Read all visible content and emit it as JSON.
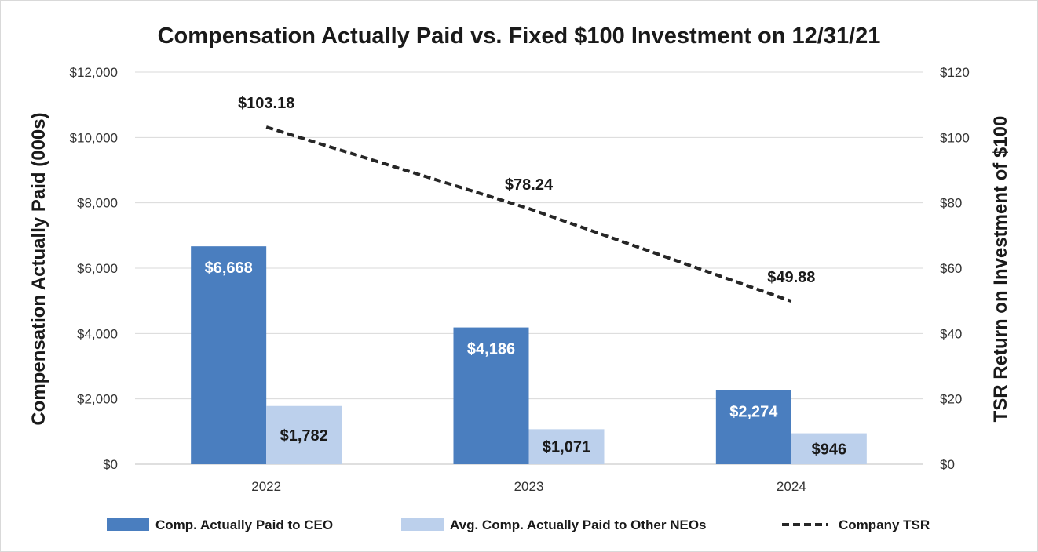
{
  "chart_data": {
    "type": "bar",
    "title": "Compensation Actually Paid vs. Fixed $100 Investment on 12/31/21",
    "categories": [
      "2022",
      "2023",
      "2024"
    ],
    "ylabel": "Compensation Actually Paid (000s)",
    "y2label": "TSR Return on Investment of $100",
    "ylim": [
      0,
      12000
    ],
    "y2lim": [
      0,
      120
    ],
    "yticks": [
      "$0",
      "$2,000",
      "$4,000",
      "$6,000",
      "$8,000",
      "$10,000",
      "$12,000"
    ],
    "y2ticks": [
      "$0",
      "$20",
      "$40",
      "$60",
      "$80",
      "$100",
      "$120"
    ],
    "grid": true,
    "legend_position": "bottom",
    "series": [
      {
        "name": "Comp. Actually Paid to CEO",
        "type": "bar",
        "axis": "left",
        "color": "#4a7ebf",
        "values": [
          6668,
          4186,
          2274
        ],
        "labels": [
          "$6,668",
          "$4,186",
          "$2,274"
        ]
      },
      {
        "name": "Avg. Comp. Actually Paid to Other NEOs",
        "type": "bar",
        "axis": "left",
        "color": "#bcd0ec",
        "values": [
          1782,
          1071,
          946
        ],
        "labels": [
          "$1,782",
          "$1,071",
          "$946"
        ]
      },
      {
        "name": "Company TSR",
        "type": "line",
        "style": "dashed",
        "axis": "right",
        "color": "#262626",
        "values": [
          103.18,
          78.24,
          49.88
        ],
        "labels": [
          "$103.18",
          "$78.24",
          "$49.88"
        ]
      }
    ]
  }
}
